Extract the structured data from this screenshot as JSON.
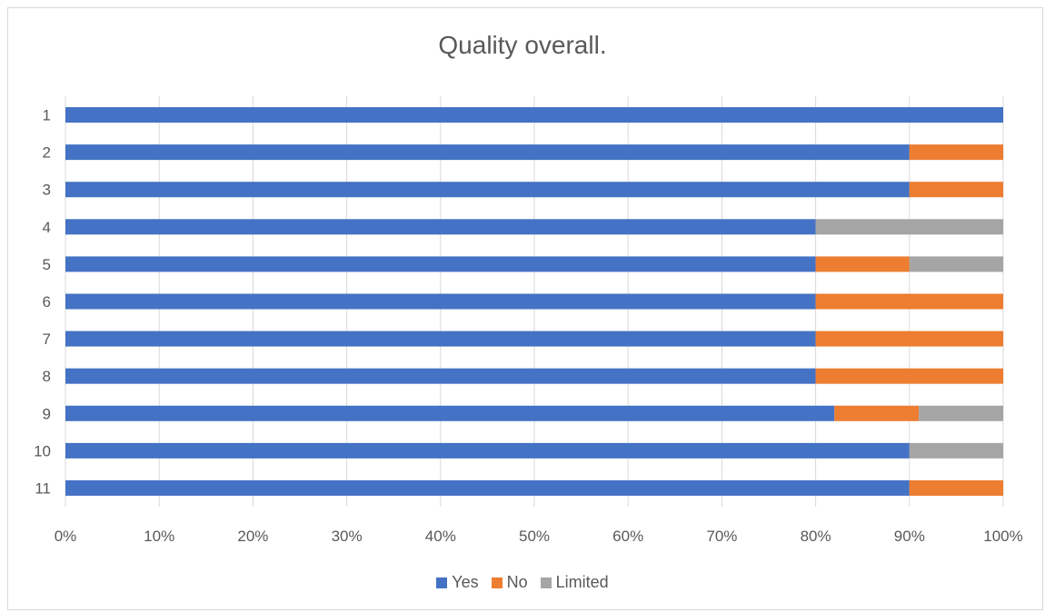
{
  "chart_data": {
    "type": "bar",
    "orientation": "horizontal",
    "stacked": "percent",
    "title": "Quality overall.",
    "xlabel": "",
    "ylabel": "",
    "categories": [
      "1",
      "2",
      "3",
      "4",
      "5",
      "6",
      "7",
      "8",
      "9",
      "10",
      "11"
    ],
    "series": [
      {
        "name": "Yes",
        "color": "#4472c4",
        "values": [
          100,
          90,
          90,
          80,
          80,
          80,
          80,
          80,
          82,
          90,
          90
        ]
      },
      {
        "name": "No",
        "color": "#ed7d31",
        "values": [
          0,
          10,
          10,
          0,
          10,
          20,
          20,
          20,
          9,
          0,
          10
        ]
      },
      {
        "name": "Limited",
        "color": "#a5a5a5",
        "values": [
          0,
          0,
          0,
          20,
          10,
          0,
          0,
          0,
          9,
          10,
          0
        ]
      }
    ],
    "xlim": [
      0,
      100
    ],
    "xticks": [
      "0%",
      "10%",
      "20%",
      "30%",
      "40%",
      "50%",
      "60%",
      "70%",
      "80%",
      "90%",
      "100%"
    ],
    "grid": true,
    "legend": "bottom"
  }
}
